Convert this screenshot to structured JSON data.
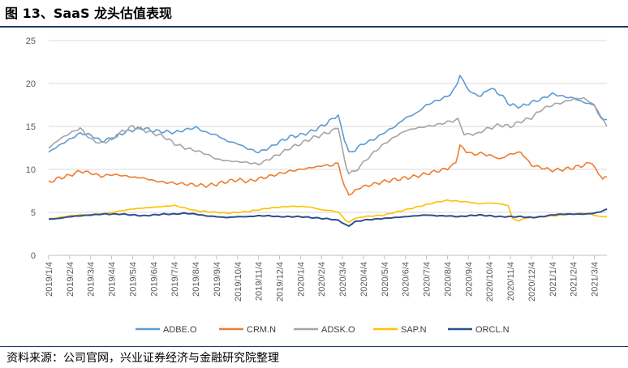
{
  "header": {
    "title": "图 13、SaaS 龙头估值表现"
  },
  "footer": {
    "source": "资料来源：公司官网，兴业证券经济与金融研究院整理"
  },
  "chart_data": {
    "type": "line",
    "ylim": [
      0,
      25
    ],
    "yticks": [
      0,
      5,
      10,
      15,
      20,
      25
    ],
    "grid": "horizontal",
    "legend_position": "bottom",
    "categories": [
      "2019/1/4",
      "2019/2/4",
      "2019/3/4",
      "2019/4/4",
      "2019/5/4",
      "2019/6/4",
      "2019/7/4",
      "2019/8/4",
      "2019/9/4",
      "2019/10/4",
      "2019/11/4",
      "2019/12/4",
      "2020/1/4",
      "2020/2/4",
      "2020/3/4",
      "2020/4/4",
      "2020/5/4",
      "2020/6/4",
      "2020/7/4",
      "2020/8/4",
      "2020/9/4",
      "2020/10/4",
      "2020/11/4",
      "2020/12/4",
      "2021/1/4",
      "2021/2/4",
      "2021/3/4"
    ],
    "x_extra_final": 0.6,
    "series": [
      {
        "name": "ADBE.O",
        "color": "#5b9bd5",
        "points": [
          [
            0,
            12.0
          ],
          [
            0.5,
            12.8
          ],
          [
            1,
            13.5
          ],
          [
            1.5,
            14.2
          ],
          [
            2,
            14.0
          ],
          [
            2.5,
            13.3
          ],
          [
            3,
            13.6
          ],
          [
            3.5,
            14.2
          ],
          [
            4,
            14.6
          ],
          [
            4.5,
            14.8
          ],
          [
            5,
            14.5
          ],
          [
            5.5,
            14.4
          ],
          [
            6,
            14.3
          ],
          [
            6.5,
            14.6
          ],
          [
            7,
            14.9
          ],
          [
            7.5,
            14.3
          ],
          [
            8,
            14.0
          ],
          [
            8.5,
            13.3
          ],
          [
            9,
            13.0
          ],
          [
            9.5,
            12.4
          ],
          [
            10,
            12.0
          ],
          [
            10.5,
            12.5
          ],
          [
            11,
            13.2
          ],
          [
            11.5,
            13.8
          ],
          [
            12,
            14.0
          ],
          [
            12.5,
            14.4
          ],
          [
            13,
            15.0
          ],
          [
            13.5,
            15.8
          ],
          [
            13.8,
            16.3
          ],
          [
            14.1,
            13.5
          ],
          [
            14.3,
            12.0
          ],
          [
            14.6,
            12.3
          ],
          [
            15,
            13.0
          ],
          [
            15.5,
            13.5
          ],
          [
            16,
            14.3
          ],
          [
            16.5,
            15.0
          ],
          [
            17,
            16.0
          ],
          [
            17.5,
            16.5
          ],
          [
            18,
            17.5
          ],
          [
            18.5,
            18.0
          ],
          [
            19,
            18.5
          ],
          [
            19.4,
            19.5
          ],
          [
            19.6,
            21.0
          ],
          [
            19.9,
            19.5
          ],
          [
            20.2,
            18.9
          ],
          [
            20.6,
            18.5
          ],
          [
            21,
            19.5
          ],
          [
            21.5,
            18.8
          ],
          [
            22,
            17.5
          ],
          [
            22.5,
            17.3
          ],
          [
            23,
            17.8
          ],
          [
            23.5,
            18.2
          ],
          [
            24,
            18.8
          ],
          [
            24.5,
            18.5
          ],
          [
            25,
            18.3
          ],
          [
            25.5,
            17.8
          ],
          [
            26,
            17.5
          ],
          [
            26.3,
            16.0
          ],
          [
            26.6,
            15.8
          ]
        ]
      },
      {
        "name": "CRM.N",
        "color": "#ed7d31",
        "points": [
          [
            0,
            8.5
          ],
          [
            0.5,
            9.0
          ],
          [
            1,
            9.3
          ],
          [
            1.5,
            9.8
          ],
          [
            2,
            9.6
          ],
          [
            2.5,
            9.2
          ],
          [
            3,
            9.4
          ],
          [
            3.5,
            9.3
          ],
          [
            4,
            9.1
          ],
          [
            4.5,
            9.0
          ],
          [
            5,
            8.7
          ],
          [
            5.5,
            8.5
          ],
          [
            6,
            8.4
          ],
          [
            6.5,
            8.3
          ],
          [
            7,
            8.2
          ],
          [
            7.5,
            8.1
          ],
          [
            8,
            8.3
          ],
          [
            8.5,
            8.6
          ],
          [
            9,
            8.8
          ],
          [
            9.5,
            8.6
          ],
          [
            10,
            8.9
          ],
          [
            10.5,
            9.2
          ],
          [
            11,
            9.5
          ],
          [
            11.5,
            9.8
          ],
          [
            12,
            10.0
          ],
          [
            12.5,
            10.2
          ],
          [
            13,
            10.4
          ],
          [
            13.8,
            10.6
          ],
          [
            14.1,
            8.0
          ],
          [
            14.3,
            7.0
          ],
          [
            14.6,
            7.6
          ],
          [
            15,
            8.0
          ],
          [
            15.5,
            8.3
          ],
          [
            16,
            8.6
          ],
          [
            16.5,
            8.8
          ],
          [
            17,
            9.0
          ],
          [
            17.5,
            9.2
          ],
          [
            18,
            9.5
          ],
          [
            18.5,
            9.8
          ],
          [
            19,
            10.1
          ],
          [
            19.4,
            10.8
          ],
          [
            19.6,
            12.8
          ],
          [
            19.9,
            12.0
          ],
          [
            20.3,
            11.8
          ],
          [
            20.7,
            11.8
          ],
          [
            21,
            11.7
          ],
          [
            21.5,
            11.2
          ],
          [
            22,
            11.8
          ],
          [
            22.5,
            12.0
          ],
          [
            23,
            10.5
          ],
          [
            23.5,
            10.2
          ],
          [
            24,
            9.9
          ],
          [
            24.5,
            10.0
          ],
          [
            25,
            10.2
          ],
          [
            25.5,
            10.5
          ],
          [
            25.9,
            10.8
          ],
          [
            26.2,
            9.5
          ],
          [
            26.4,
            9.0
          ],
          [
            26.6,
            9.1
          ]
        ]
      },
      {
        "name": "ADSK.O",
        "color": "#a5a5a5",
        "points": [
          [
            0,
            12.5
          ],
          [
            0.5,
            13.5
          ],
          [
            1,
            14.2
          ],
          [
            1.5,
            14.8
          ],
          [
            2,
            13.5
          ],
          [
            2.5,
            13.0
          ],
          [
            3,
            13.5
          ],
          [
            3.5,
            14.4
          ],
          [
            4,
            15.0
          ],
          [
            4.5,
            14.6
          ],
          [
            5,
            14.2
          ],
          [
            5.5,
            13.8
          ],
          [
            6,
            13.0
          ],
          [
            6.5,
            12.5
          ],
          [
            7,
            12.2
          ],
          [
            7.5,
            11.8
          ],
          [
            8,
            11.2
          ],
          [
            8.5,
            11.0
          ],
          [
            9,
            10.9
          ],
          [
            9.5,
            10.8
          ],
          [
            10,
            10.6
          ],
          [
            10.5,
            11.2
          ],
          [
            11,
            11.8
          ],
          [
            11.5,
            12.5
          ],
          [
            12,
            13.0
          ],
          [
            12.5,
            13.6
          ],
          [
            13,
            14.0
          ],
          [
            13.5,
            14.5
          ],
          [
            13.8,
            14.8
          ],
          [
            14.1,
            11.0
          ],
          [
            14.3,
            9.5
          ],
          [
            14.6,
            9.8
          ],
          [
            15,
            10.8
          ],
          [
            15.5,
            12.0
          ],
          [
            16,
            13.0
          ],
          [
            16.5,
            13.8
          ],
          [
            17,
            14.5
          ],
          [
            17.5,
            14.8
          ],
          [
            18,
            15.0
          ],
          [
            18.5,
            15.2
          ],
          [
            19,
            15.5
          ],
          [
            19.5,
            15.8
          ],
          [
            19.8,
            14.2
          ],
          [
            20.2,
            14.0
          ],
          [
            20.6,
            14.4
          ],
          [
            21,
            14.8
          ],
          [
            21.5,
            15.2
          ],
          [
            22,
            15.0
          ],
          [
            22.5,
            15.6
          ],
          [
            23,
            16.0
          ],
          [
            23.5,
            17.0
          ],
          [
            24,
            17.5
          ],
          [
            24.5,
            17.8
          ],
          [
            25,
            18.2
          ],
          [
            25.5,
            18.3
          ],
          [
            26,
            17.5
          ],
          [
            26.3,
            16.0
          ],
          [
            26.6,
            15.0
          ]
        ]
      },
      {
        "name": "SAP.N",
        "color": "#ffc000",
        "points": [
          [
            0,
            4.2
          ],
          [
            0.5,
            4.4
          ],
          [
            1,
            4.6
          ],
          [
            1.5,
            4.7
          ],
          [
            2,
            4.7
          ],
          [
            2.5,
            4.8
          ],
          [
            3,
            5.0
          ],
          [
            3.5,
            5.2
          ],
          [
            4,
            5.4
          ],
          [
            4.5,
            5.5
          ],
          [
            5,
            5.6
          ],
          [
            5.5,
            5.7
          ],
          [
            6,
            5.8
          ],
          [
            6.5,
            5.5
          ],
          [
            7,
            5.2
          ],
          [
            7.5,
            5.1
          ],
          [
            8,
            5.0
          ],
          [
            8.5,
            4.9
          ],
          [
            9,
            5.0
          ],
          [
            9.5,
            5.1
          ],
          [
            10,
            5.3
          ],
          [
            10.5,
            5.5
          ],
          [
            11,
            5.6
          ],
          [
            11.5,
            5.7
          ],
          [
            12,
            5.7
          ],
          [
            12.5,
            5.6
          ],
          [
            13,
            5.3
          ],
          [
            13.5,
            5.2
          ],
          [
            13.8,
            5.0
          ],
          [
            14.1,
            4.2
          ],
          [
            14.3,
            3.8
          ],
          [
            14.6,
            4.3
          ],
          [
            15,
            4.5
          ],
          [
            15.5,
            4.6
          ],
          [
            16,
            4.7
          ],
          [
            16.5,
            5.0
          ],
          [
            17,
            5.3
          ],
          [
            17.5,
            5.6
          ],
          [
            18,
            5.9
          ],
          [
            18.5,
            6.2
          ],
          [
            19,
            6.4
          ],
          [
            19.5,
            6.3
          ],
          [
            20,
            6.2
          ],
          [
            20.5,
            6.0
          ],
          [
            21,
            6.1
          ],
          [
            21.5,
            6.0
          ],
          [
            21.9,
            5.8
          ],
          [
            22.1,
            4.3
          ],
          [
            22.4,
            4.0
          ],
          [
            22.7,
            4.3
          ],
          [
            23,
            4.4
          ],
          [
            23.5,
            4.5
          ],
          [
            24,
            4.6
          ],
          [
            24.5,
            4.7
          ],
          [
            25,
            4.8
          ],
          [
            25.5,
            4.9
          ],
          [
            26,
            4.7
          ],
          [
            26.3,
            4.5
          ],
          [
            26.6,
            4.5
          ]
        ]
      },
      {
        "name": "ORCL.N",
        "color": "#2e4f8f",
        "points": [
          [
            0,
            4.2
          ],
          [
            0.5,
            4.3
          ],
          [
            1,
            4.5
          ],
          [
            1.5,
            4.6
          ],
          [
            2,
            4.7
          ],
          [
            2.5,
            4.8
          ],
          [
            3,
            4.8
          ],
          [
            3.5,
            4.8
          ],
          [
            4,
            4.7
          ],
          [
            4.5,
            4.6
          ],
          [
            5,
            4.7
          ],
          [
            5.5,
            4.8
          ],
          [
            6,
            4.8
          ],
          [
            6.5,
            4.9
          ],
          [
            7,
            4.8
          ],
          [
            7.5,
            4.6
          ],
          [
            8,
            4.5
          ],
          [
            8.5,
            4.4
          ],
          [
            9,
            4.5
          ],
          [
            9.5,
            4.5
          ],
          [
            10,
            4.6
          ],
          [
            10.5,
            4.6
          ],
          [
            11,
            4.5
          ],
          [
            11.5,
            4.5
          ],
          [
            12,
            4.5
          ],
          [
            12.5,
            4.4
          ],
          [
            13,
            4.3
          ],
          [
            13.5,
            4.2
          ],
          [
            13.8,
            4.1
          ],
          [
            14.1,
            3.6
          ],
          [
            14.3,
            3.4
          ],
          [
            14.6,
            3.9
          ],
          [
            15,
            4.1
          ],
          [
            15.5,
            4.2
          ],
          [
            16,
            4.3
          ],
          [
            16.5,
            4.4
          ],
          [
            17,
            4.5
          ],
          [
            17.5,
            4.6
          ],
          [
            18,
            4.7
          ],
          [
            18.5,
            4.6
          ],
          [
            19,
            4.6
          ],
          [
            19.5,
            4.5
          ],
          [
            20,
            4.6
          ],
          [
            20.5,
            4.7
          ],
          [
            21,
            4.6
          ],
          [
            21.5,
            4.5
          ],
          [
            22,
            4.5
          ],
          [
            22.5,
            4.5
          ],
          [
            23,
            4.4
          ],
          [
            23.5,
            4.5
          ],
          [
            24,
            4.7
          ],
          [
            24.5,
            4.8
          ],
          [
            25,
            4.8
          ],
          [
            25.5,
            4.8
          ],
          [
            26,
            4.9
          ],
          [
            26.3,
            5.1
          ],
          [
            26.6,
            5.4
          ]
        ]
      }
    ]
  }
}
